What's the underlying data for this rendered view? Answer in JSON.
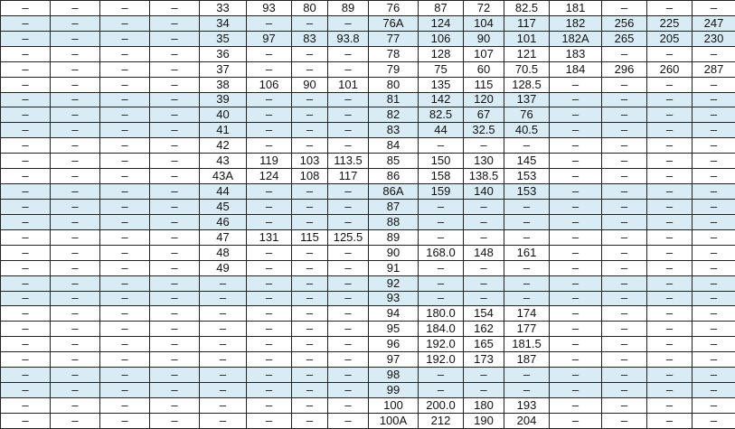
{
  "table": {
    "rows": [
      [
        "–",
        "–",
        "–",
        "–",
        "33",
        "93",
        "80",
        "89",
        "76",
        "87",
        "72",
        "82.5",
        "181",
        "–",
        "–",
        "–"
      ],
      [
        "–",
        "–",
        "–",
        "–",
        "34",
        "–",
        "–",
        "–",
        "76A",
        "124",
        "104",
        "117",
        "182",
        "256",
        "225",
        "247"
      ],
      [
        "–",
        "–",
        "–",
        "–",
        "35",
        "97",
        "83",
        "93.8",
        "77",
        "106",
        "90",
        "101",
        "182A",
        "265",
        "205",
        "230"
      ],
      [
        "–",
        "–",
        "–",
        "–",
        "36",
        "–",
        "–",
        "–",
        "78",
        "128",
        "107",
        "121",
        "183",
        "–",
        "–",
        "–"
      ],
      [
        "–",
        "–",
        "–",
        "–",
        "37",
        "–",
        "–",
        "–",
        "79",
        "75",
        "60",
        "70.5",
        "184",
        "296",
        "260",
        "287"
      ],
      [
        "–",
        "–",
        "–",
        "–",
        "38",
        "106",
        "90",
        "101",
        "80",
        "135",
        "115",
        "128.5",
        "–",
        "–",
        "–",
        "–"
      ],
      [
        "–",
        "–",
        "–",
        "–",
        "39",
        "–",
        "–",
        "–",
        "81",
        "142",
        "120",
        "137",
        "–",
        "–",
        "–",
        "–"
      ],
      [
        "–",
        "–",
        "–",
        "–",
        "40",
        "–",
        "–",
        "–",
        "82",
        "82.5",
        "67",
        "76",
        "–",
        "–",
        "–",
        "–"
      ],
      [
        "–",
        "–",
        "–",
        "–",
        "41",
        "–",
        "–",
        "–",
        "83",
        "44",
        "32.5",
        "40.5",
        "–",
        "–",
        "–",
        "–"
      ],
      [
        "–",
        "–",
        "–",
        "–",
        "42",
        "–",
        "–",
        "–",
        "84",
        "–",
        "–",
        "–",
        "–",
        "–",
        "–",
        "–"
      ],
      [
        "–",
        "–",
        "–",
        "–",
        "43",
        "119",
        "103",
        "113.5",
        "85",
        "150",
        "130",
        "145",
        "–",
        "–",
        "–",
        "–"
      ],
      [
        "–",
        "–",
        "–",
        "–",
        "43A",
        "124",
        "108",
        "117",
        "86",
        "158",
        "138.5",
        "153",
        "–",
        "–",
        "–",
        "–"
      ],
      [
        "–",
        "–",
        "–",
        "–",
        "44",
        "–",
        "–",
        "–",
        "86A",
        "159",
        "140",
        "153",
        "–",
        "–",
        "–",
        "–"
      ],
      [
        "–",
        "–",
        "–",
        "–",
        "45",
        "–",
        "–",
        "–",
        "87",
        "–",
        "–",
        "–",
        "–",
        "–",
        "–",
        "–"
      ],
      [
        "–",
        "–",
        "–",
        "–",
        "46",
        "–",
        "–",
        "–",
        "88",
        "–",
        "–",
        "–",
        "–",
        "–",
        "–",
        "–"
      ],
      [
        "–",
        "–",
        "–",
        "–",
        "47",
        "131",
        "115",
        "125.5",
        "89",
        "–",
        "–",
        "–",
        "–",
        "–",
        "–",
        "–"
      ],
      [
        "–",
        "–",
        "–",
        "–",
        "48",
        "–",
        "–",
        "–",
        "90",
        "168.0",
        "148",
        "161",
        "–",
        "–",
        "–",
        "–"
      ],
      [
        "–",
        "–",
        "–",
        "–",
        "49",
        "–",
        "–",
        "–",
        "91",
        "–",
        "–",
        "–",
        "–",
        "–",
        "–",
        "–"
      ],
      [
        "–",
        "–",
        "–",
        "–",
        "–",
        "–",
        "–",
        "–",
        "92",
        "–",
        "–",
        "–",
        "–",
        "–",
        "–",
        "–"
      ],
      [
        "–",
        "–",
        "–",
        "–",
        "–",
        "–",
        "–",
        "–",
        "93",
        "–",
        "–",
        "–",
        "–",
        "–",
        "–",
        "–"
      ],
      [
        "–",
        "–",
        "–",
        "–",
        "–",
        "–",
        "–",
        "–",
        "94",
        "180.0",
        "154",
        "174",
        "–",
        "–",
        "–",
        "–"
      ],
      [
        "–",
        "–",
        "–",
        "–",
        "–",
        "–",
        "–",
        "–",
        "95",
        "184.0",
        "162",
        "177",
        "–",
        "–",
        "–",
        "–"
      ],
      [
        "–",
        "–",
        "–",
        "–",
        "–",
        "–",
        "–",
        "–",
        "96",
        "192.0",
        "165",
        "181.5",
        "–",
        "–",
        "–",
        "–"
      ],
      [
        "–",
        "–",
        "–",
        "–",
        "–",
        "–",
        "–",
        "–",
        "97",
        "192.0",
        "173",
        "187",
        "–",
        "–",
        "–",
        "–"
      ],
      [
        "–",
        "–",
        "–",
        "–",
        "–",
        "–",
        "–",
        "–",
        "98",
        "–",
        "–",
        "–",
        "–",
        "–",
        "–",
        "–"
      ],
      [
        "–",
        "–",
        "–",
        "–",
        "–",
        "–",
        "–",
        "–",
        "99",
        "–",
        "–",
        "–",
        "–",
        "–",
        "–",
        "–"
      ],
      [
        "–",
        "–",
        "–",
        "–",
        "–",
        "–",
        "–",
        "–",
        "100",
        "200.0",
        "180",
        "193",
        "–",
        "–",
        "–",
        "–"
      ],
      [
        "–",
        "–",
        "–",
        "–",
        "–",
        "–",
        "–",
        "–",
        "100A",
        "212",
        "190",
        "204",
        "–",
        "–",
        "–",
        "–"
      ]
    ]
  }
}
